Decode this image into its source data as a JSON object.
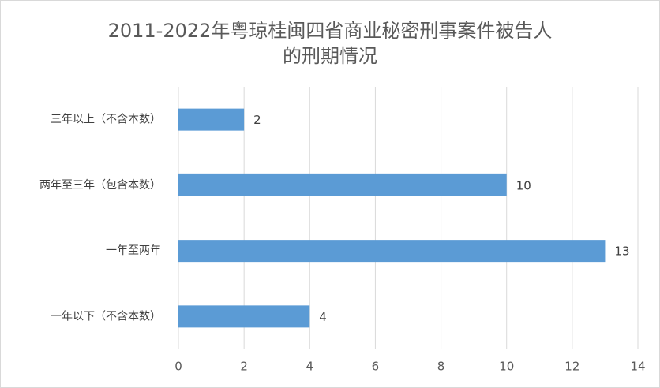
{
  "chart_data": {
    "type": "hbar",
    "title": [
      "2011-2022年粤琼桂闽四省商业秘密刑事案件被告人",
      "的刑期情况"
    ],
    "categories": [
      "三年以上（不含本数）",
      "两年至三年（包含本数）",
      "一年至两年",
      "一年以下（不含本数）"
    ],
    "values": [
      2,
      10,
      13,
      4
    ],
    "color": "#5b9bd5",
    "xlim": [
      0,
      14
    ],
    "xticks": [
      0,
      2,
      4,
      6,
      8,
      10,
      12,
      14
    ],
    "grid": true
  }
}
